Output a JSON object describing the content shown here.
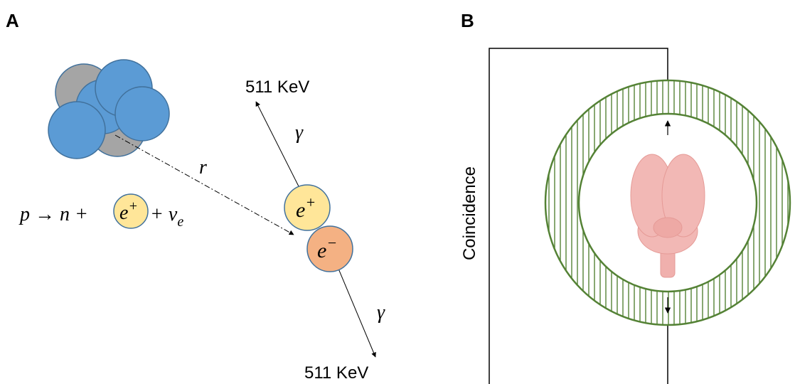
{
  "panel_a": {
    "label": "A",
    "equation": {
      "prefix": "p → n +",
      "positron": {
        "base": "e",
        "sup": "+"
      },
      "suffix": {
        "base": "+ v",
        "sub": "e"
      }
    },
    "distance": "r",
    "positron": {
      "base": "e",
      "sup": "+"
    },
    "electron": {
      "base": "e",
      "sup": "−"
    },
    "photon_top": {
      "energy": "511 KeV",
      "symbol": "γ"
    },
    "photon_bottom": {
      "energy": "511 KeV",
      "symbol": "γ"
    }
  },
  "panel_b": {
    "label": "B",
    "circuit": "Coincidence"
  }
}
